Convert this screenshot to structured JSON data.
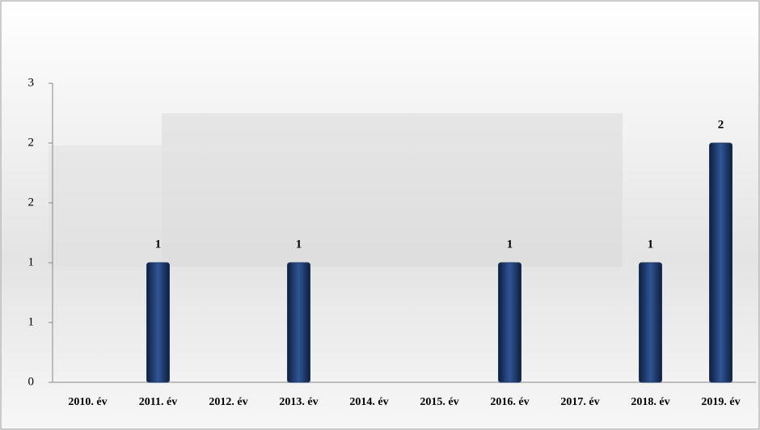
{
  "chart_data": {
    "type": "bar",
    "categories": [
      "2010. év",
      "2011. év",
      "2012. év",
      "2013. év",
      "2014. év",
      "2015. év",
      "2016. év",
      "2017. év",
      "2018. év",
      "2019. év"
    ],
    "values": [
      0,
      1,
      0,
      1,
      0,
      0,
      1,
      0,
      1,
      2
    ],
    "color": "#1f3864",
    "ylim": [
      0,
      2.5
    ],
    "yticks": [
      0,
      {
        "value": 0.5,
        "label": "1"
      },
      1,
      {
        "value": 1.5,
        "label": "2"
      },
      2,
      {
        "value": 2.5,
        "label": "3"
      }
    ],
    "grid": false
  }
}
